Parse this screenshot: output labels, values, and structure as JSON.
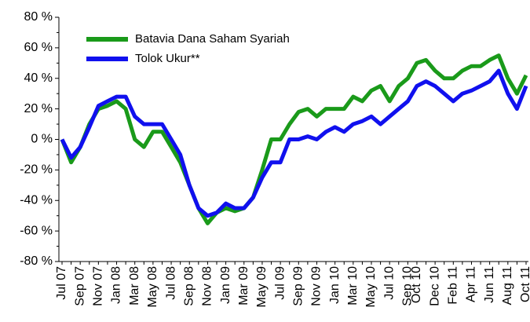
{
  "chart_data": {
    "type": "line",
    "categories": [
      "Jul 07",
      null,
      "Sep 07",
      null,
      "Nov 07",
      null,
      "Jan 08",
      null,
      "Mar 08",
      null,
      "May 08",
      null,
      "Jul 08",
      null,
      "Sep 08",
      null,
      "Nov 08",
      null,
      "Jan 09",
      null,
      "Mar 09",
      null,
      "May 09",
      null,
      "Jul 09",
      null,
      "Sep 09",
      null,
      "Nov 09",
      null,
      "Jan 10",
      null,
      "Mar 10",
      null,
      "May 10",
      null,
      "Jul 10",
      null,
      "Sep 10",
      "Oct 10",
      null,
      "Dec 10",
      null,
      "Feb 11",
      null,
      "Apr 11",
      null,
      "Jun 11",
      null,
      "Aug 11",
      null,
      "Oct 11"
    ],
    "series": [
      {
        "name": "Batavia Dana Saham Syariah",
        "color": "#1a9a1a",
        "values": [
          0,
          -15,
          -5,
          10,
          20,
          22,
          25,
          20,
          0,
          -5,
          5,
          5,
          -5,
          -15,
          -30,
          -45,
          -55,
          -48,
          -45,
          -47,
          -45,
          -38,
          -20,
          0,
          0,
          10,
          18,
          20,
          15,
          20,
          20,
          20,
          28,
          25,
          32,
          35,
          25,
          35,
          40,
          50,
          52,
          45,
          40,
          40,
          45,
          48,
          48,
          52,
          55,
          40,
          30,
          42
        ]
      },
      {
        "name": "Tolok Ukur**",
        "color": "#1010ee",
        "values": [
          0,
          -12,
          -5,
          8,
          22,
          25,
          28,
          28,
          15,
          10,
          10,
          10,
          0,
          -10,
          -30,
          -45,
          -50,
          -48,
          -42,
          -45,
          -45,
          -38,
          -25,
          -15,
          -15,
          0,
          0,
          2,
          0,
          5,
          8,
          5,
          10,
          12,
          15,
          10,
          15,
          20,
          25,
          35,
          38,
          35,
          30,
          25,
          30,
          32,
          35,
          38,
          45,
          30,
          20,
          35
        ]
      }
    ],
    "ylim": [
      -80,
      80
    ],
    "yticks": [
      {
        "value": -80,
        "label": "-80 %"
      },
      {
        "value": -60,
        "label": "-60 %"
      },
      {
        "value": -40,
        "label": "-40 %"
      },
      {
        "value": -20,
        "label": "-20 %"
      },
      {
        "value": 0,
        "label": "0 %"
      },
      {
        "value": 20,
        "label": "20 %"
      },
      {
        "value": 40,
        "label": "40 %"
      },
      {
        "value": 60,
        "label": "60 %"
      },
      {
        "value": 80,
        "label": "80 %"
      }
    ],
    "grid": false
  }
}
